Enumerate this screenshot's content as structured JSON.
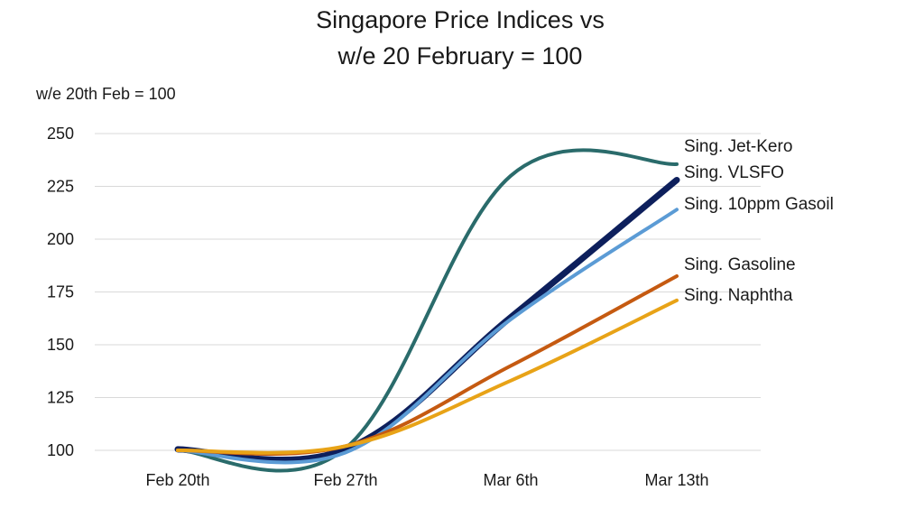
{
  "chart_data": {
    "type": "line",
    "title": [
      "Singapore Price Indices vs",
      "w/e 20 February = 100"
    ],
    "unit_label": "w/e 20th Feb = 100",
    "categories": [
      "Feb 20th",
      "Feb 27th",
      "Mar 6th",
      "Mar 13th"
    ],
    "ylim": [
      100,
      250
    ],
    "yticks": [
      100,
      125,
      150,
      175,
      200,
      225,
      250
    ],
    "grid": true,
    "legend": "direct labels at line ends",
    "series": [
      {
        "name": "Sing. Jet-Kero",
        "values": [
          100,
          101,
          230,
          235.5
        ],
        "color": "#2a6b6b",
        "width": 4
      },
      {
        "name": "Sing. VLSFO",
        "values": [
          100.5,
          100.5,
          163,
          228
        ],
        "color": "#0d1f5c",
        "width": 7
      },
      {
        "name": "Sing. 10ppm Gasoil",
        "values": [
          100,
          99,
          162,
          214
        ],
        "color": "#5b9bd5",
        "width": 4
      },
      {
        "name": "Sing. Gasoline",
        "values": [
          100,
          102,
          140,
          182.5
        ],
        "color": "#c55a11",
        "width": 4
      },
      {
        "name": "Sing. Naphtha",
        "values": [
          100,
          102,
          133,
          171
        ],
        "color": "#e8a317",
        "width": 4
      }
    ]
  }
}
